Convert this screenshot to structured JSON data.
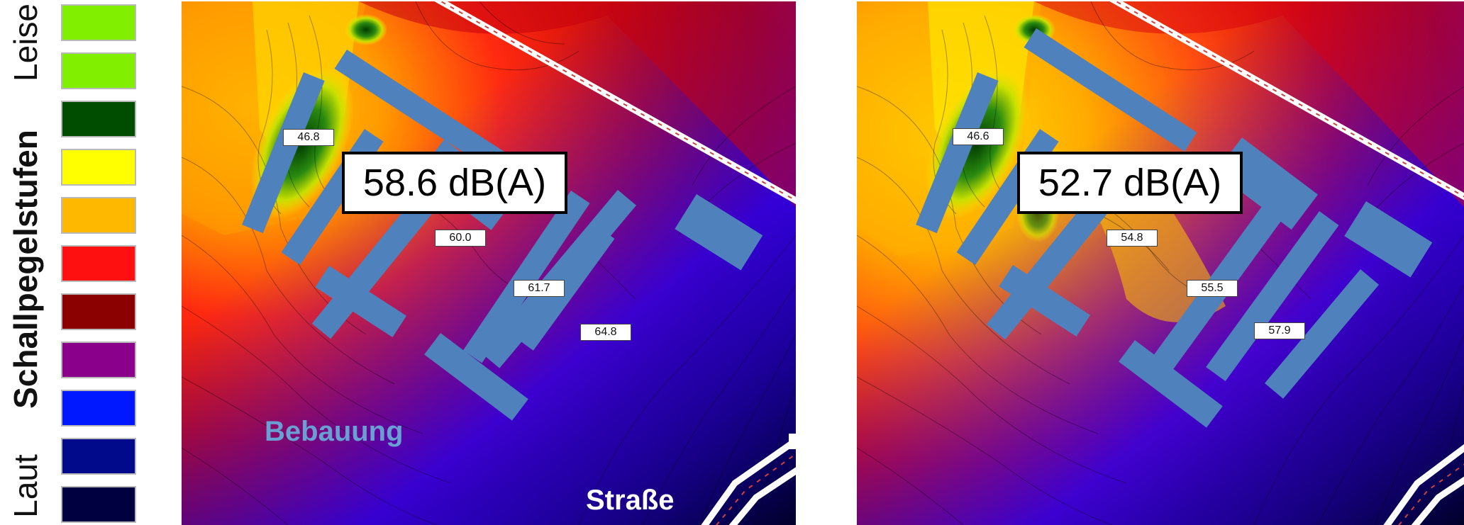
{
  "legend": {
    "label_top": "Leise",
    "title": "Schallpegelstufen",
    "label_bottom": "Laut",
    "levels": [
      {
        "color": "#80f000"
      },
      {
        "color": "#80f000"
      },
      {
        "color": "#004d00"
      },
      {
        "color": "#ffff00"
      },
      {
        "color": "#ffb800"
      },
      {
        "color": "#ff1010"
      },
      {
        "color": "#8b0000"
      },
      {
        "color": "#8b008b"
      },
      {
        "color": "#0018ff"
      },
      {
        "color": "#000a8a"
      },
      {
        "color": "#000040"
      }
    ]
  },
  "map_left": {
    "main_value": "58.6 dB(A)",
    "point_labels": [
      "46.8",
      "60.0",
      "61.7",
      "64.8"
    ],
    "annotation_buildings": "Bebauung",
    "annotation_street": "Straße"
  },
  "map_right": {
    "main_value": "52.7 dB(A)",
    "point_labels": [
      "46.6",
      "54.8",
      "55.5",
      "57.9"
    ]
  },
  "colors": {
    "building": "#4f81bd",
    "building_label": "#6a9fd4"
  }
}
